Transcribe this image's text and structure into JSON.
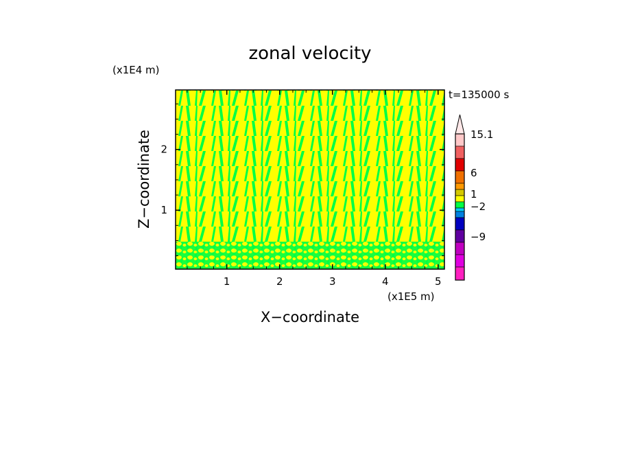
{
  "chart_data": {
    "type": "heatmap",
    "title": "zonal velocity",
    "xlabel": "X−coordinate",
    "ylabel": "Z−coordinate",
    "x_unit": "(x1E5 m)",
    "y_unit": "(x1E4 m)",
    "time_label": "t=135000 s",
    "xlim": [
      0.03,
      5.12
    ],
    "ylim": [
      0.03,
      2.98
    ],
    "x_ticks": [
      1,
      2,
      3,
      4,
      5
    ],
    "x_tick_labels": [
      "1",
      "2",
      "3",
      "4",
      "5"
    ],
    "y_ticks": [
      1,
      2
    ],
    "y_tick_labels": [
      "1",
      "2"
    ],
    "grid": false,
    "field_colors": [
      "#ffff00",
      "#00ff44"
    ],
    "colorbar": {
      "position": "right",
      "tick_labels": [
        "15.1",
        "6",
        "1",
        "−2",
        "−9"
      ],
      "colors_top_to_bottom": [
        "#ffc8c8",
        "#f06060",
        "#e00000",
        "#f07000",
        "#ff9900",
        "#d4c800",
        "#ffff00",
        "#00ff44",
        "#00ccff",
        "#0080e0",
        "#0000c0",
        "#6000a0",
        "#c000c0",
        "#e000e0",
        "#ff20c0"
      ],
      "arrow_color": "#ffe8e8"
    }
  }
}
